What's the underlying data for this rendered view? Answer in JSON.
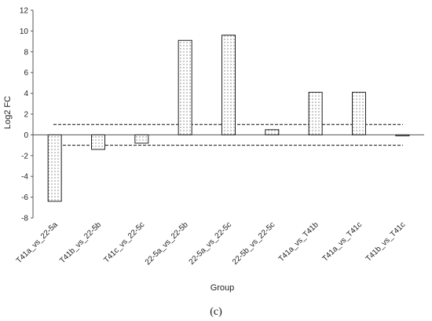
{
  "chart_data": {
    "type": "bar",
    "categories": [
      "T41a_vs_22-5a",
      "T41b_vs_22-5b",
      "T41c_vs_22-5c",
      "22-5a_vs_22-5b",
      "22-5a_vs_22-5c",
      "22-5b_vs_22-5c",
      "T41a_vs_T41b",
      "T41a_vs_T41c",
      "T41b_vs_T41c"
    ],
    "values": [
      -6.4,
      -1.4,
      -0.8,
      9.1,
      9.6,
      0.5,
      4.1,
      4.1,
      -0.1
    ],
    "xlabel": "Group",
    "ylabel": "Log2 FC",
    "ylim": [
      -8,
      12
    ],
    "yticks": [
      "12",
      "10",
      "8",
      "6",
      "4",
      "2",
      "0",
      "-2",
      "-4",
      "-6",
      "-8"
    ],
    "threshold_lines": [
      1,
      -1
    ],
    "bar_fill": "dotted",
    "grid": false,
    "legend": "none"
  },
  "caption": "(c)"
}
